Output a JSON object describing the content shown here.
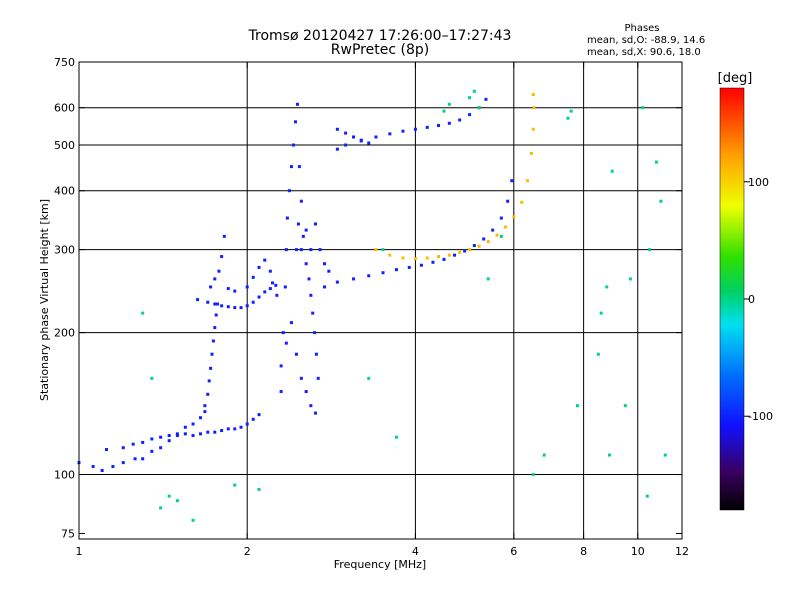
{
  "chart_data": {
    "type": "scatter",
    "title": "Tromsø 20120427 17:26:00–17:27:43",
    "subtitle": "RwPretec (8p)",
    "stats": {
      "heading": "Phases",
      "line1": "mean, sd,O:  -88.9, 14.6",
      "line2": "mean, sd,X:   90.6, 18.0"
    },
    "xlabel": "Frequency [MHz]",
    "ylabel": "Stationary phase Virtual Height [km]",
    "x_scale": "log",
    "y_scale": "log",
    "xlim": [
      1,
      12
    ],
    "ylim": [
      73,
      750
    ],
    "x_ticks": [
      1,
      2,
      4,
      6,
      8,
      10,
      12
    ],
    "x_tick_labels": [
      "1",
      "2",
      "4",
      "6",
      "8",
      "10",
      "12"
    ],
    "y_ticks": [
      75,
      100,
      200,
      300,
      400,
      500,
      600,
      750
    ],
    "y_tick_labels": [
      "75",
      "100",
      "200",
      "300",
      "400",
      "500",
      "600",
      "750"
    ],
    "grid_x": [
      2,
      4,
      6,
      8,
      10
    ],
    "grid_y": [
      100,
      200,
      300,
      400,
      500,
      600
    ],
    "colorbar": {
      "label": "[deg]",
      "range": [
        -180,
        180
      ],
      "ticks": [
        100,
        0,
        -100
      ],
      "tick_labels": [
        "100",
        "0",
        "-100"
      ]
    },
    "series": [
      {
        "trace": "o-low-E",
        "phase": -100,
        "points": [
          [
            1.0,
            106
          ],
          [
            1.06,
            104
          ],
          [
            1.1,
            102
          ],
          [
            1.15,
            104
          ],
          [
            1.2,
            106
          ],
          [
            1.26,
            108
          ],
          [
            1.3,
            108
          ],
          [
            1.35,
            112
          ],
          [
            1.4,
            114
          ],
          [
            1.45,
            118
          ],
          [
            1.5,
            122
          ],
          [
            1.55,
            126
          ],
          [
            1.6,
            128
          ],
          [
            1.65,
            132
          ],
          [
            1.68,
            136
          ]
        ]
      },
      {
        "trace": "o-E-cusp-lower",
        "phase": -100,
        "points": [
          [
            1.12,
            113
          ],
          [
            1.2,
            114
          ],
          [
            1.25,
            116
          ],
          [
            1.3,
            117
          ],
          [
            1.35,
            119
          ],
          [
            1.4,
            120
          ],
          [
            1.45,
            121
          ],
          [
            1.5,
            121
          ],
          [
            1.55,
            122
          ],
          [
            1.6,
            121
          ],
          [
            1.65,
            122
          ],
          [
            1.7,
            123
          ],
          [
            1.75,
            123
          ],
          [
            1.8,
            124
          ],
          [
            1.85,
            125
          ],
          [
            1.9,
            125
          ],
          [
            1.95,
            126
          ],
          [
            2.0,
            128
          ],
          [
            2.05,
            131
          ],
          [
            2.1,
            134
          ]
        ]
      },
      {
        "trace": "o-E-rise",
        "phase": -100,
        "points": [
          [
            1.68,
            140
          ],
          [
            1.7,
            148
          ],
          [
            1.71,
            158
          ],
          [
            1.72,
            168
          ],
          [
            1.73,
            180
          ],
          [
            1.74,
            192
          ],
          [
            1.75,
            205
          ],
          [
            1.76,
            218
          ],
          [
            1.77,
            230
          ]
        ]
      },
      {
        "trace": "o-F1-cusp",
        "phase": -100,
        "points": [
          [
            1.63,
            235
          ],
          [
            1.7,
            232
          ],
          [
            1.75,
            230
          ],
          [
            1.8,
            228
          ],
          [
            1.85,
            227
          ],
          [
            1.9,
            226
          ],
          [
            1.95,
            226
          ],
          [
            2.0,
            228
          ],
          [
            2.05,
            232
          ],
          [
            2.1,
            238
          ],
          [
            2.15,
            244
          ],
          [
            2.2,
            248
          ],
          [
            2.25,
            252
          ]
        ]
      },
      {
        "trace": "o-F1-spread",
        "phase": -100,
        "points": [
          [
            1.8,
            290
          ],
          [
            1.82,
            320
          ],
          [
            1.78,
            270
          ],
          [
            1.75,
            260
          ],
          [
            1.72,
            250
          ],
          [
            1.85,
            248
          ],
          [
            1.9,
            245
          ],
          [
            2.0,
            250
          ],
          [
            2.05,
            262
          ],
          [
            2.1,
            275
          ],
          [
            2.15,
            285
          ],
          [
            2.2,
            270
          ],
          [
            2.22,
            255
          ],
          [
            2.26,
            240
          ]
        ]
      },
      {
        "trace": "o-spread-F-column",
        "phase": -100,
        "points": [
          [
            2.3,
            150
          ],
          [
            2.32,
            200
          ],
          [
            2.34,
            250
          ],
          [
            2.35,
            300
          ],
          [
            2.36,
            350
          ],
          [
            2.38,
            400
          ],
          [
            2.4,
            450
          ],
          [
            2.42,
            500
          ],
          [
            2.44,
            560
          ],
          [
            2.46,
            610
          ],
          [
            2.48,
            450
          ],
          [
            2.5,
            380
          ],
          [
            2.52,
            320
          ],
          [
            2.55,
            280
          ],
          [
            2.58,
            260
          ],
          [
            2.6,
            240
          ],
          [
            2.62,
            220
          ],
          [
            2.64,
            200
          ],
          [
            2.66,
            180
          ],
          [
            2.68,
            160
          ],
          [
            2.45,
            300
          ],
          [
            2.47,
            340
          ],
          [
            2.5,
            300
          ],
          [
            2.55,
            330
          ],
          [
            2.6,
            300
          ],
          [
            2.65,
            340
          ],
          [
            2.7,
            300
          ],
          [
            2.75,
            280
          ],
          [
            2.8,
            270
          ],
          [
            2.3,
            170
          ],
          [
            2.35,
            190
          ],
          [
            2.4,
            210
          ],
          [
            2.45,
            180
          ],
          [
            2.5,
            160
          ],
          [
            2.55,
            150
          ],
          [
            2.6,
            140
          ],
          [
            2.65,
            135
          ]
        ]
      },
      {
        "trace": "o-F2-main",
        "phase": -100,
        "points": [
          [
            2.75,
            250
          ],
          [
            2.9,
            256
          ],
          [
            3.1,
            260
          ],
          [
            3.3,
            264
          ],
          [
            3.5,
            268
          ],
          [
            3.7,
            272
          ],
          [
            3.9,
            275
          ],
          [
            4.1,
            278
          ],
          [
            4.3,
            282
          ],
          [
            4.5,
            286
          ],
          [
            4.7,
            292
          ],
          [
            4.9,
            298
          ],
          [
            5.1,
            306
          ],
          [
            5.3,
            316
          ],
          [
            5.5,
            330
          ],
          [
            5.7,
            350
          ],
          [
            5.85,
            380
          ],
          [
            5.95,
            420
          ]
        ]
      },
      {
        "trace": "o-F2-upper",
        "phase": -100,
        "points": [
          [
            2.9,
            490
          ],
          [
            3.0,
            500
          ],
          [
            3.2,
            510
          ],
          [
            3.4,
            520
          ],
          [
            3.6,
            528
          ],
          [
            3.8,
            535
          ],
          [
            4.0,
            540
          ],
          [
            4.2,
            545
          ],
          [
            4.4,
            550
          ],
          [
            4.6,
            556
          ],
          [
            4.8,
            565
          ],
          [
            5.0,
            580
          ],
          [
            5.2,
            600
          ],
          [
            5.35,
            625
          ]
        ]
      },
      {
        "trace": "o-F2-oblique",
        "phase": -100,
        "points": [
          [
            2.9,
            540
          ],
          [
            3.0,
            530
          ],
          [
            3.1,
            520
          ],
          [
            3.2,
            512
          ],
          [
            3.3,
            505
          ]
        ]
      },
      {
        "trace": "x-F2",
        "phase": 110,
        "points": [
          [
            3.4,
            300
          ],
          [
            3.6,
            292
          ],
          [
            3.8,
            288
          ],
          [
            4.0,
            287
          ],
          [
            4.2,
            288
          ],
          [
            4.4,
            290
          ],
          [
            4.6,
            292
          ],
          [
            4.8,
            296
          ],
          [
            5.0,
            300
          ],
          [
            5.2,
            305
          ],
          [
            5.4,
            312
          ],
          [
            5.6,
            322
          ],
          [
            5.8,
            335
          ],
          [
            6.0,
            352
          ],
          [
            6.2,
            378
          ],
          [
            6.35,
            420
          ],
          [
            6.45,
            480
          ],
          [
            6.5,
            540
          ],
          [
            6.52,
            600
          ],
          [
            6.5,
            640
          ]
        ]
      },
      {
        "trace": "scatter-noise",
        "phase": 0,
        "points": [
          [
            1.4,
            85
          ],
          [
            1.45,
            90
          ],
          [
            1.5,
            88
          ],
          [
            1.6,
            80
          ],
          [
            1.9,
            95
          ],
          [
            2.1,
            93
          ],
          [
            3.3,
            160
          ],
          [
            3.5,
            300
          ],
          [
            4.5,
            590
          ],
          [
            4.6,
            610
          ],
          [
            5.0,
            630
          ],
          [
            5.1,
            650
          ],
          [
            5.2,
            600
          ],
          [
            7.5,
            570
          ],
          [
            7.6,
            590
          ],
          [
            8.5,
            180
          ],
          [
            8.6,
            220
          ],
          [
            8.8,
            250
          ],
          [
            9.5,
            140
          ],
          [
            9.7,
            260
          ],
          [
            10.2,
            600
          ],
          [
            10.5,
            300
          ],
          [
            10.8,
            460
          ],
          [
            11.0,
            380
          ],
          [
            11.2,
            110
          ],
          [
            10.4,
            90
          ],
          [
            9.0,
            440
          ],
          [
            8.9,
            110
          ],
          [
            7.8,
            140
          ],
          [
            6.8,
            110
          ],
          [
            6.5,
            100
          ],
          [
            5.7,
            320
          ],
          [
            5.4,
            260
          ],
          [
            3.7,
            120
          ],
          [
            1.35,
            160
          ],
          [
            1.3,
            220
          ]
        ]
      }
    ]
  }
}
